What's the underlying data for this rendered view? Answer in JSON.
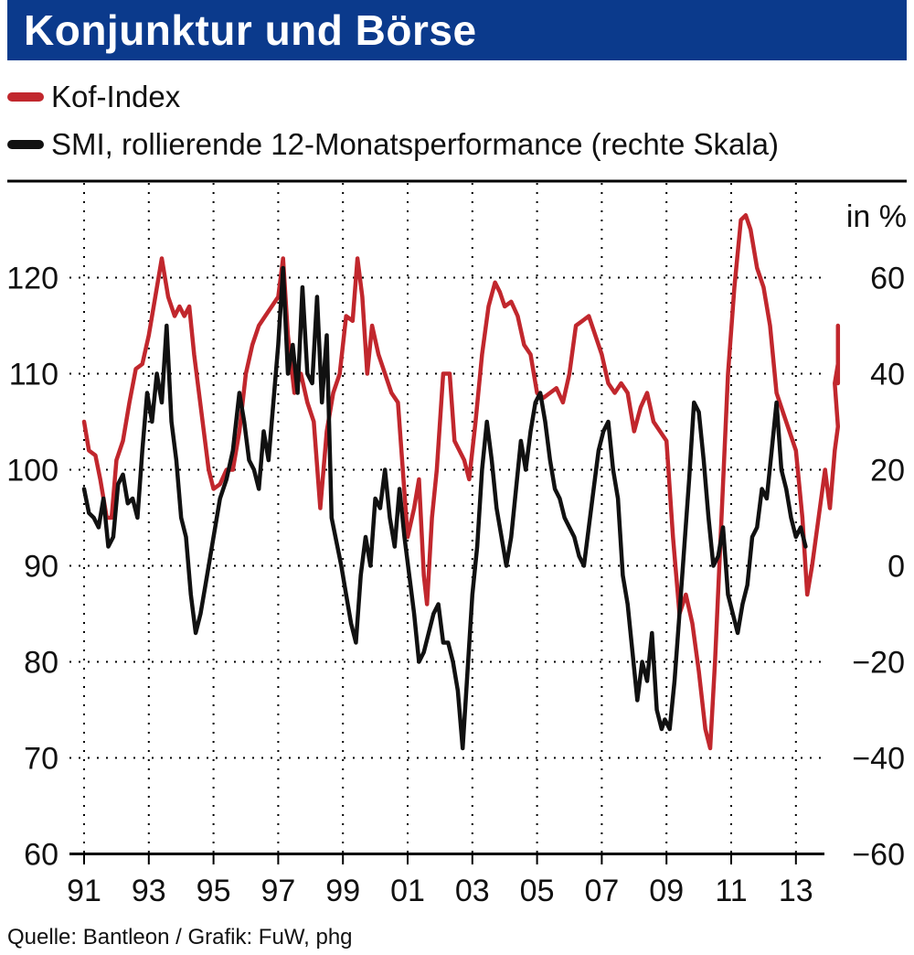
{
  "header": {
    "title": "Konjunktur und Börse"
  },
  "legend": [
    {
      "label": "Kof-Index",
      "color": "#c1272d"
    },
    {
      "label": "SMI, rollierende 12-Monatsperformance (rechte Skala)",
      "color": "#111111"
    }
  ],
  "source": "Quelle: Bantleon / Grafik: FuW, phg",
  "chart_data": {
    "type": "line",
    "x_tick_labels": [
      "91",
      "93",
      "95",
      "97",
      "99",
      "01",
      "03",
      "05",
      "07",
      "09",
      "11",
      "13"
    ],
    "x_range": [
      1991,
      2014.3
    ],
    "left_axis": {
      "ticks": [
        "120",
        "110",
        "100",
        "90",
        "80",
        "70",
        "60"
      ],
      "range": [
        60,
        130
      ]
    },
    "right_axis": {
      "unit_label": "in %",
      "ticks": [
        "60",
        "40",
        "20",
        "0",
        "−20",
        "−40",
        "−60"
      ],
      "range": [
        -60,
        80
      ]
    },
    "grid": true,
    "series": [
      {
        "name": "Kof-Index",
        "axis": "left",
        "color": "#c1272d",
        "points": [
          [
            1991.0,
            105
          ],
          [
            1991.15,
            102
          ],
          [
            1991.35,
            101.5
          ],
          [
            1991.5,
            99
          ],
          [
            1991.7,
            95
          ],
          [
            1991.85,
            95
          ],
          [
            1992.0,
            101
          ],
          [
            1992.2,
            103
          ],
          [
            1992.4,
            107
          ],
          [
            1992.6,
            110.5
          ],
          [
            1992.8,
            111
          ],
          [
            1993.0,
            114
          ],
          [
            1993.2,
            118
          ],
          [
            1993.4,
            122
          ],
          [
            1993.6,
            118
          ],
          [
            1993.8,
            116
          ],
          [
            1993.95,
            117
          ],
          [
            1994.1,
            116
          ],
          [
            1994.25,
            117
          ],
          [
            1994.4,
            112
          ],
          [
            1994.55,
            108
          ],
          [
            1994.7,
            104
          ],
          [
            1994.85,
            100
          ],
          [
            1995.0,
            98
          ],
          [
            1995.2,
            98.5
          ],
          [
            1995.4,
            100
          ],
          [
            1995.6,
            100
          ],
          [
            1995.8,
            104
          ],
          [
            1996.0,
            110
          ],
          [
            1996.2,
            113
          ],
          [
            1996.4,
            115
          ],
          [
            1996.6,
            116
          ],
          [
            1996.8,
            117
          ],
          [
            1997.0,
            118
          ],
          [
            1997.15,
            122
          ],
          [
            1997.3,
            114
          ],
          [
            1997.5,
            108
          ],
          [
            1997.7,
            110
          ],
          [
            1997.9,
            107
          ],
          [
            1998.1,
            105
          ],
          [
            1998.3,
            96
          ],
          [
            1998.5,
            104
          ],
          [
            1998.7,
            108
          ],
          [
            1998.9,
            110
          ],
          [
            1999.1,
            116
          ],
          [
            1999.3,
            115.5
          ],
          [
            1999.45,
            122
          ],
          [
            1999.6,
            118
          ],
          [
            1999.75,
            110
          ],
          [
            1999.9,
            115
          ],
          [
            2000.1,
            112
          ],
          [
            2000.3,
            110
          ],
          [
            2000.5,
            108
          ],
          [
            2000.7,
            107
          ],
          [
            2000.85,
            100
          ],
          [
            2001.0,
            93
          ],
          [
            2001.2,
            96
          ],
          [
            2001.35,
            99
          ],
          [
            2001.5,
            89
          ],
          [
            2001.6,
            86
          ],
          [
            2001.75,
            95
          ],
          [
            2001.9,
            100
          ],
          [
            2002.1,
            110
          ],
          [
            2002.3,
            110
          ],
          [
            2002.45,
            103
          ],
          [
            2002.6,
            102
          ],
          [
            2002.75,
            101
          ],
          [
            2002.9,
            99
          ],
          [
            2003.1,
            105
          ],
          [
            2003.3,
            112
          ],
          [
            2003.5,
            117
          ],
          [
            2003.7,
            119.5
          ],
          [
            2003.85,
            118.5
          ],
          [
            2004.0,
            117
          ],
          [
            2004.2,
            117.5
          ],
          [
            2004.4,
            116
          ],
          [
            2004.6,
            113
          ],
          [
            2004.8,
            112
          ],
          [
            2005.0,
            108
          ],
          [
            2005.2,
            107.5
          ],
          [
            2005.4,
            108
          ],
          [
            2005.6,
            108.5
          ],
          [
            2005.8,
            107
          ],
          [
            2006.0,
            110
          ],
          [
            2006.2,
            115
          ],
          [
            2006.4,
            115.5
          ],
          [
            2006.6,
            116
          ],
          [
            2006.8,
            114
          ],
          [
            2007.0,
            112
          ],
          [
            2007.2,
            109
          ],
          [
            2007.4,
            108
          ],
          [
            2007.6,
            109
          ],
          [
            2007.8,
            108
          ],
          [
            2008.0,
            104
          ],
          [
            2008.2,
            106.5
          ],
          [
            2008.4,
            108
          ],
          [
            2008.6,
            105
          ],
          [
            2008.8,
            104
          ],
          [
            2009.0,
            103
          ],
          [
            2009.2,
            93
          ],
          [
            2009.4,
            85
          ],
          [
            2009.6,
            87
          ],
          [
            2009.8,
            84
          ],
          [
            2010.0,
            79
          ],
          [
            2010.2,
            73
          ],
          [
            2010.35,
            71
          ],
          [
            2010.5,
            80
          ],
          [
            2010.7,
            95
          ],
          [
            2010.9,
            110
          ],
          [
            2011.1,
            119
          ],
          [
            2011.3,
            126
          ],
          [
            2011.45,
            126.5
          ],
          [
            2011.6,
            125
          ],
          [
            2011.8,
            121
          ],
          [
            2012.0,
            119
          ],
          [
            2012.2,
            115
          ],
          [
            2012.4,
            108
          ],
          [
            2012.6,
            106
          ],
          [
            2012.8,
            104
          ],
          [
            2013.0,
            102
          ],
          [
            2013.2,
            95
          ],
          [
            2013.35,
            87
          ],
          [
            2013.5,
            90
          ],
          [
            2013.7,
            95
          ],
          [
            2013.9,
            100
          ],
          [
            2014.05,
            96
          ],
          [
            2014.2,
            102
          ],
          [
            2014.3,
            104.5
          ],
          [
            2014.2,
            109
          ],
          [
            2014.3,
            111
          ],
          [
            2014.3,
            114
          ],
          [
            2014.3,
            112
          ],
          [
            2014.3,
            115
          ],
          [
            2014.3,
            109
          ]
        ]
      },
      {
        "name": "SMI, rollierende 12-Monatsperformance (rechte Skala)",
        "axis": "right",
        "color": "#111111",
        "points": [
          [
            1991.0,
            16
          ],
          [
            1991.15,
            11
          ],
          [
            1991.3,
            10
          ],
          [
            1991.45,
            8
          ],
          [
            1991.6,
            14
          ],
          [
            1991.75,
            4
          ],
          [
            1991.9,
            6
          ],
          [
            1992.05,
            17
          ],
          [
            1992.2,
            19
          ],
          [
            1992.35,
            13
          ],
          [
            1992.5,
            14
          ],
          [
            1992.65,
            10
          ],
          [
            1992.8,
            24
          ],
          [
            1992.95,
            36
          ],
          [
            1993.1,
            30
          ],
          [
            1993.25,
            40
          ],
          [
            1993.4,
            34
          ],
          [
            1993.55,
            50
          ],
          [
            1993.7,
            30
          ],
          [
            1993.85,
            22
          ],
          [
            1994.0,
            10
          ],
          [
            1994.15,
            6
          ],
          [
            1994.3,
            -6
          ],
          [
            1994.45,
            -14
          ],
          [
            1994.6,
            -10
          ],
          [
            1994.75,
            -4
          ],
          [
            1994.9,
            2
          ],
          [
            1995.05,
            8
          ],
          [
            1995.2,
            14
          ],
          [
            1995.4,
            18
          ],
          [
            1995.6,
            24
          ],
          [
            1995.8,
            36
          ],
          [
            1995.95,
            30
          ],
          [
            1996.1,
            22
          ],
          [
            1996.25,
            20
          ],
          [
            1996.4,
            16
          ],
          [
            1996.55,
            28
          ],
          [
            1996.7,
            22
          ],
          [
            1996.85,
            34
          ],
          [
            1997.0,
            46
          ],
          [
            1997.15,
            62
          ],
          [
            1997.3,
            40
          ],
          [
            1997.45,
            46
          ],
          [
            1997.6,
            36
          ],
          [
            1997.75,
            58
          ],
          [
            1997.9,
            40
          ],
          [
            1998.05,
            38
          ],
          [
            1998.2,
            56
          ],
          [
            1998.35,
            34
          ],
          [
            1998.5,
            48
          ],
          [
            1998.65,
            10
          ],
          [
            1998.8,
            5
          ],
          [
            1998.95,
            0
          ],
          [
            1999.1,
            -6
          ],
          [
            1999.25,
            -12
          ],
          [
            1999.4,
            -16
          ],
          [
            1999.55,
            -2
          ],
          [
            1999.7,
            6
          ],
          [
            1999.85,
            0
          ],
          [
            2000.0,
            14
          ],
          [
            2000.15,
            12
          ],
          [
            2000.3,
            20
          ],
          [
            2000.45,
            10
          ],
          [
            2000.6,
            4
          ],
          [
            2000.75,
            16
          ],
          [
            2000.9,
            6
          ],
          [
            2001.05,
            -2
          ],
          [
            2001.2,
            -10
          ],
          [
            2001.35,
            -20
          ],
          [
            2001.5,
            -18
          ],
          [
            2001.65,
            -14
          ],
          [
            2001.8,
            -10
          ],
          [
            2001.95,
            -8
          ],
          [
            2002.1,
            -16
          ],
          [
            2002.25,
            -16
          ],
          [
            2002.4,
            -20
          ],
          [
            2002.55,
            -26
          ],
          [
            2002.7,
            -38
          ],
          [
            2002.85,
            -22
          ],
          [
            2003.0,
            -6
          ],
          [
            2003.15,
            4
          ],
          [
            2003.3,
            20
          ],
          [
            2003.45,
            30
          ],
          [
            2003.6,
            22
          ],
          [
            2003.75,
            12
          ],
          [
            2003.9,
            6
          ],
          [
            2004.05,
            0
          ],
          [
            2004.2,
            6
          ],
          [
            2004.35,
            16
          ],
          [
            2004.5,
            26
          ],
          [
            2004.65,
            20
          ],
          [
            2004.8,
            28
          ],
          [
            2004.95,
            34
          ],
          [
            2005.1,
            36
          ],
          [
            2005.25,
            30
          ],
          [
            2005.4,
            22
          ],
          [
            2005.55,
            16
          ],
          [
            2005.7,
            14
          ],
          [
            2005.85,
            10
          ],
          [
            2006.0,
            8
          ],
          [
            2006.15,
            6
          ],
          [
            2006.3,
            2
          ],
          [
            2006.45,
            0
          ],
          [
            2006.6,
            8
          ],
          [
            2006.75,
            16
          ],
          [
            2006.9,
            24
          ],
          [
            2007.05,
            28
          ],
          [
            2007.2,
            30
          ],
          [
            2007.35,
            20
          ],
          [
            2007.5,
            14
          ],
          [
            2007.65,
            -2
          ],
          [
            2007.8,
            -8
          ],
          [
            2007.95,
            -18
          ],
          [
            2008.1,
            -28
          ],
          [
            2008.25,
            -20
          ],
          [
            2008.4,
            -24
          ],
          [
            2008.55,
            -14
          ],
          [
            2008.7,
            -30
          ],
          [
            2008.85,
            -34
          ],
          [
            2008.95,
            -32
          ],
          [
            2009.1,
            -34
          ],
          [
            2009.25,
            -24
          ],
          [
            2009.4,
            -10
          ],
          [
            2009.55,
            4
          ],
          [
            2009.7,
            18
          ],
          [
            2009.85,
            34
          ],
          [
            2010.0,
            32
          ],
          [
            2010.15,
            22
          ],
          [
            2010.3,
            10
          ],
          [
            2010.45,
            0
          ],
          [
            2010.6,
            2
          ],
          [
            2010.75,
            8
          ],
          [
            2010.9,
            -6
          ],
          [
            2011.05,
            -10
          ],
          [
            2011.2,
            -14
          ],
          [
            2011.35,
            -8
          ],
          [
            2011.5,
            -4
          ],
          [
            2011.65,
            6
          ],
          [
            2011.8,
            8
          ],
          [
            2011.95,
            16
          ],
          [
            2012.1,
            14
          ],
          [
            2012.25,
            24
          ],
          [
            2012.4,
            34
          ],
          [
            2012.55,
            20
          ],
          [
            2012.7,
            16
          ],
          [
            2012.85,
            10
          ],
          [
            2013.0,
            6
          ],
          [
            2013.15,
            8
          ],
          [
            2013.3,
            4
          ]
        ]
      }
    ]
  }
}
